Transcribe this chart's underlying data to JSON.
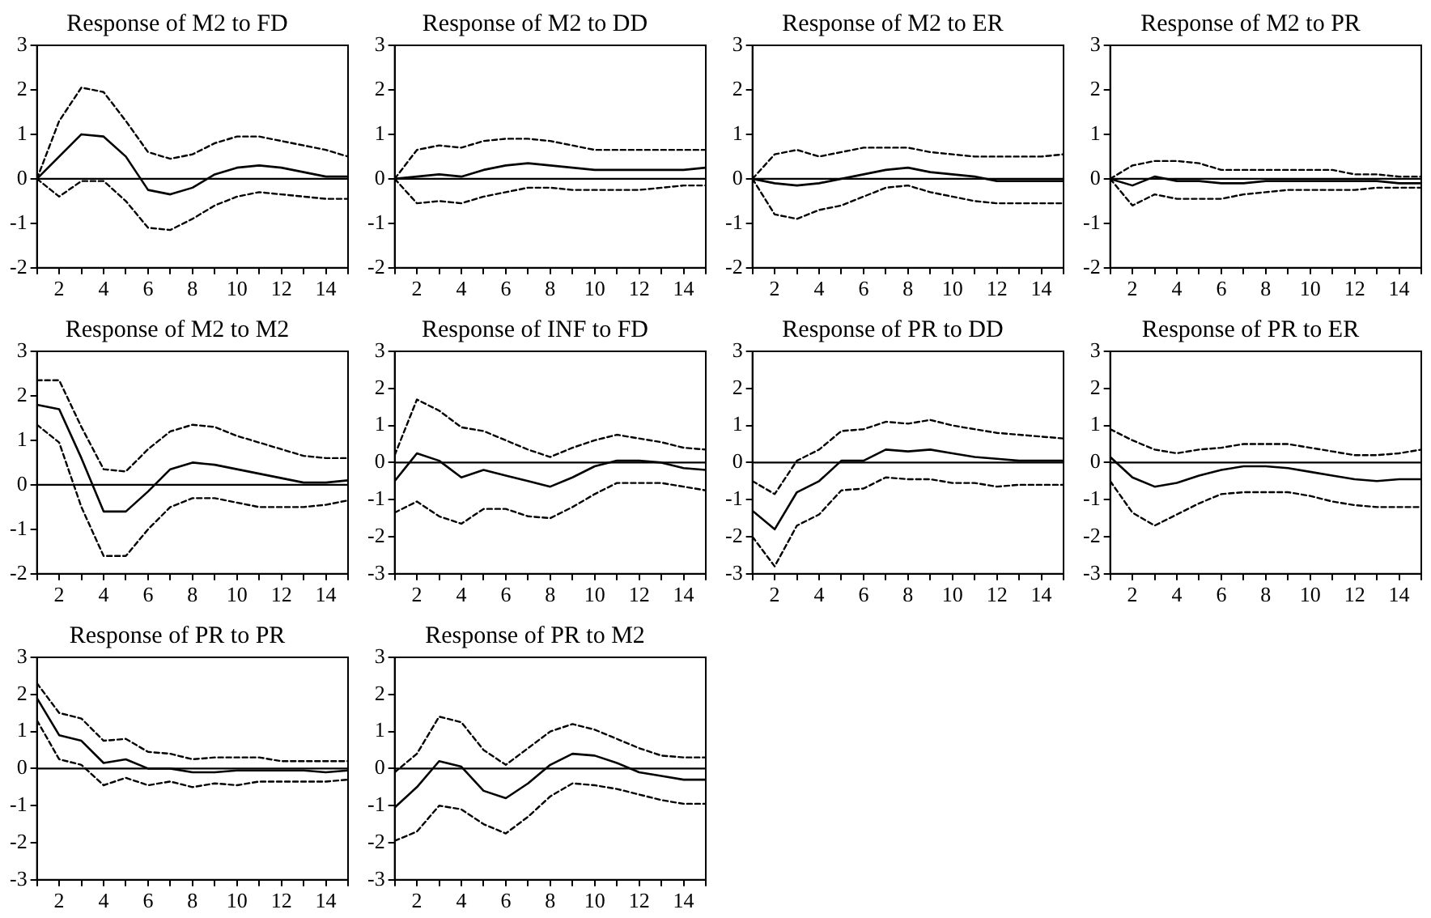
{
  "chart_data": [
    {
      "type": "line",
      "title": "Response of M2 to FD",
      "x": [
        1,
        2,
        3,
        4,
        5,
        6,
        7,
        8,
        9,
        10,
        11,
        12,
        13,
        14,
        15
      ],
      "xlim": [
        1,
        15
      ],
      "xticks": [
        {
          "value": 1,
          "label": null
        },
        2,
        {
          "value": 3,
          "label": null
        },
        4,
        {
          "value": 5,
          "label": null
        },
        6,
        {
          "value": 7,
          "label": null
        },
        8,
        {
          "value": 9,
          "label": null
        },
        10,
        {
          "value": 11,
          "label": null
        },
        12,
        {
          "value": 13,
          "label": null
        },
        14,
        {
          "value": 15,
          "label": null
        }
      ],
      "ylim": [
        -2,
        3
      ],
      "yticks": [
        -2,
        -1,
        0,
        1,
        2,
        3
      ],
      "grid": false,
      "ref_lines": [
        {
          "axis": "y",
          "value": 0,
          "color": "#000000"
        }
      ],
      "series": [
        {
          "color": "#000000",
          "line_style": "solid",
          "values": [
            0,
            0.5,
            1.0,
            0.95,
            0.5,
            -0.25,
            -0.35,
            -0.2,
            0.1,
            0.25,
            0.3,
            0.25,
            0.15,
            0.05,
            0.05
          ]
        },
        {
          "color": "#000000",
          "line_style": "dashed",
          "values": [
            0,
            1.3,
            2.05,
            1.95,
            1.3,
            0.6,
            0.45,
            0.55,
            0.8,
            0.95,
            0.95,
            0.85,
            0.75,
            0.65,
            0.5
          ]
        },
        {
          "color": "#000000",
          "line_style": "dashed",
          "values": [
            0,
            -0.4,
            -0.05,
            -0.05,
            -0.5,
            -1.1,
            -1.15,
            -0.9,
            -0.6,
            -0.4,
            -0.3,
            -0.35,
            -0.4,
            -0.45,
            -0.45
          ]
        }
      ]
    },
    {
      "type": "line",
      "title": "Response of M2 to DD",
      "x": [
        1,
        2,
        3,
        4,
        5,
        6,
        7,
        8,
        9,
        10,
        11,
        12,
        13,
        14,
        15
      ],
      "xlim": [
        1,
        15
      ],
      "xticks": [
        {
          "value": 1,
          "label": null
        },
        2,
        {
          "value": 3,
          "label": null
        },
        4,
        {
          "value": 5,
          "label": null
        },
        6,
        {
          "value": 7,
          "label": null
        },
        8,
        {
          "value": 9,
          "label": null
        },
        10,
        {
          "value": 11,
          "label": null
        },
        12,
        {
          "value": 13,
          "label": null
        },
        14,
        {
          "value": 15,
          "label": null
        }
      ],
      "ylim": [
        -2,
        3
      ],
      "yticks": [
        -2,
        -1,
        0,
        1,
        2,
        3
      ],
      "grid": false,
      "ref_lines": [
        {
          "axis": "y",
          "value": 0,
          "color": "#000000"
        }
      ],
      "series": [
        {
          "color": "#000000",
          "line_style": "solid",
          "values": [
            0,
            0.05,
            0.1,
            0.05,
            0.2,
            0.3,
            0.35,
            0.3,
            0.25,
            0.2,
            0.2,
            0.2,
            0.2,
            0.2,
            0.25
          ]
        },
        {
          "color": "#000000",
          "line_style": "dashed",
          "values": [
            0,
            0.65,
            0.75,
            0.7,
            0.85,
            0.9,
            0.9,
            0.85,
            0.75,
            0.65,
            0.65,
            0.65,
            0.65,
            0.65,
            0.65
          ]
        },
        {
          "color": "#000000",
          "line_style": "dashed",
          "values": [
            0,
            -0.55,
            -0.5,
            -0.55,
            -0.4,
            -0.3,
            -0.2,
            -0.2,
            -0.25,
            -0.25,
            -0.25,
            -0.25,
            -0.2,
            -0.15,
            -0.15
          ]
        }
      ]
    },
    {
      "type": "line",
      "title": "Response of M2 to ER",
      "x": [
        1,
        2,
        3,
        4,
        5,
        6,
        7,
        8,
        9,
        10,
        11,
        12,
        13,
        14,
        15
      ],
      "xlim": [
        1,
        15
      ],
      "xticks": [
        {
          "value": 1,
          "label": null
        },
        2,
        {
          "value": 3,
          "label": null
        },
        4,
        {
          "value": 5,
          "label": null
        },
        6,
        {
          "value": 7,
          "label": null
        },
        8,
        {
          "value": 9,
          "label": null
        },
        10,
        {
          "value": 11,
          "label": null
        },
        12,
        {
          "value": 13,
          "label": null
        },
        14,
        {
          "value": 15,
          "label": null
        }
      ],
      "ylim": [
        -2,
        3
      ],
      "yticks": [
        -2,
        -1,
        0,
        1,
        2,
        3
      ],
      "grid": false,
      "ref_lines": [
        {
          "axis": "y",
          "value": 0,
          "color": "#000000"
        }
      ],
      "series": [
        {
          "color": "#000000",
          "line_style": "solid",
          "values": [
            0,
            -0.1,
            -0.15,
            -0.1,
            0,
            0.1,
            0.2,
            0.25,
            0.15,
            0.1,
            0.05,
            -0.05,
            -0.05,
            -0.05,
            -0.05
          ]
        },
        {
          "color": "#000000",
          "line_style": "dashed",
          "values": [
            0,
            0.55,
            0.65,
            0.5,
            0.6,
            0.7,
            0.7,
            0.7,
            0.6,
            0.55,
            0.5,
            0.5,
            0.5,
            0.5,
            0.55
          ]
        },
        {
          "color": "#000000",
          "line_style": "dashed",
          "values": [
            0,
            -0.8,
            -0.9,
            -0.7,
            -0.6,
            -0.4,
            -0.2,
            -0.15,
            -0.3,
            -0.4,
            -0.5,
            -0.55,
            -0.55,
            -0.55,
            -0.55
          ]
        }
      ]
    },
    {
      "type": "line",
      "title": "Response of M2 to PR",
      "x": [
        1,
        2,
        3,
        4,
        5,
        6,
        7,
        8,
        9,
        10,
        11,
        12,
        13,
        14,
        15
      ],
      "xlim": [
        1,
        15
      ],
      "xticks": [
        {
          "value": 1,
          "label": null
        },
        2,
        {
          "value": 3,
          "label": null
        },
        4,
        {
          "value": 5,
          "label": null
        },
        6,
        {
          "value": 7,
          "label": null
        },
        8,
        {
          "value": 9,
          "label": null
        },
        10,
        {
          "value": 11,
          "label": null
        },
        12,
        {
          "value": 13,
          "label": null
        },
        14,
        {
          "value": 15,
          "label": null
        }
      ],
      "ylim": [
        -2,
        3
      ],
      "yticks": [
        -2,
        -1,
        0,
        1,
        2,
        3
      ],
      "grid": false,
      "ref_lines": [
        {
          "axis": "y",
          "value": 0,
          "color": "#000000"
        }
      ],
      "series": [
        {
          "color": "#000000",
          "line_style": "solid",
          "values": [
            0,
            -0.15,
            0.05,
            -0.05,
            -0.05,
            -0.1,
            -0.1,
            -0.05,
            -0.05,
            -0.05,
            -0.05,
            -0.05,
            -0.05,
            -0.1,
            -0.1
          ]
        },
        {
          "color": "#000000",
          "line_style": "dashed",
          "values": [
            0,
            0.3,
            0.4,
            0.4,
            0.35,
            0.2,
            0.2,
            0.2,
            0.2,
            0.2,
            0.2,
            0.1,
            0.1,
            0.05,
            0.05
          ]
        },
        {
          "color": "#000000",
          "line_style": "dashed",
          "values": [
            0,
            -0.6,
            -0.35,
            -0.45,
            -0.45,
            -0.45,
            -0.35,
            -0.3,
            -0.25,
            -0.25,
            -0.25,
            -0.25,
            -0.2,
            -0.2,
            -0.2
          ]
        }
      ]
    },
    {
      "type": "line",
      "title": "Response of M2 to M2",
      "x": [
        1,
        2,
        3,
        4,
        5,
        6,
        7,
        8,
        9,
        10,
        11,
        12,
        13,
        14,
        15
      ],
      "xlim": [
        1,
        15
      ],
      "xticks": [
        {
          "value": 1,
          "label": null
        },
        2,
        {
          "value": 3,
          "label": null
        },
        4,
        {
          "value": 5,
          "label": null
        },
        6,
        {
          "value": 7,
          "label": null
        },
        8,
        {
          "value": 9,
          "label": null
        },
        10,
        {
          "value": 11,
          "label": null
        },
        12,
        {
          "value": 13,
          "label": null
        },
        14,
        {
          "value": 15,
          "label": null
        }
      ],
      "ylim": [
        -2,
        3
      ],
      "yticks": [
        -2,
        -1,
        0,
        1,
        2,
        3
      ],
      "grid": false,
      "ref_lines": [
        {
          "axis": "y",
          "value": 0,
          "color": "#000000"
        }
      ],
      "series": [
        {
          "color": "#000000",
          "line_style": "solid",
          "values": [
            1.8,
            1.7,
            0.6,
            -0.6,
            -0.6,
            -0.15,
            0.35,
            0.5,
            0.45,
            0.35,
            0.25,
            0.15,
            0.05,
            0.05,
            0.1
          ]
        },
        {
          "color": "#000000",
          "line_style": "dashed",
          "values": [
            2.35,
            2.35,
            1.3,
            0.35,
            0.3,
            0.8,
            1.2,
            1.35,
            1.3,
            1.1,
            0.95,
            0.8,
            0.65,
            0.6,
            0.6
          ]
        },
        {
          "color": "#000000",
          "line_style": "dashed",
          "values": [
            1.35,
            0.95,
            -0.5,
            -1.6,
            -1.6,
            -1.0,
            -0.5,
            -0.3,
            -0.3,
            -0.4,
            -0.5,
            -0.5,
            -0.5,
            -0.45,
            -0.35
          ]
        }
      ]
    },
    {
      "type": "line",
      "title": "Response of INF to FD",
      "x": [
        1,
        2,
        3,
        4,
        5,
        6,
        7,
        8,
        9,
        10,
        11,
        12,
        13,
        14,
        15
      ],
      "xlim": [
        1,
        15
      ],
      "xticks": [
        {
          "value": 1,
          "label": null
        },
        2,
        {
          "value": 3,
          "label": null
        },
        4,
        {
          "value": 5,
          "label": null
        },
        6,
        {
          "value": 7,
          "label": null
        },
        8,
        {
          "value": 9,
          "label": null
        },
        10,
        {
          "value": 11,
          "label": null
        },
        12,
        {
          "value": 13,
          "label": null
        },
        14,
        {
          "value": 15,
          "label": null
        }
      ],
      "ylim": [
        -3,
        3
      ],
      "yticks": [
        -3,
        -2,
        -1,
        0,
        1,
        2,
        3
      ],
      "grid": false,
      "ref_lines": [
        {
          "axis": "y",
          "value": 0,
          "color": "#000000"
        }
      ],
      "series": [
        {
          "color": "#000000",
          "line_style": "solid",
          "values": [
            -0.5,
            0.25,
            0.05,
            -0.4,
            -0.2,
            -0.35,
            -0.5,
            -0.65,
            -0.4,
            -0.1,
            0.05,
            0.05,
            0,
            -0.15,
            -0.2
          ]
        },
        {
          "color": "#000000",
          "line_style": "dashed",
          "values": [
            0.2,
            1.7,
            1.4,
            0.95,
            0.85,
            0.6,
            0.35,
            0.15,
            0.4,
            0.6,
            0.75,
            0.65,
            0.55,
            0.4,
            0.35
          ]
        },
        {
          "color": "#000000",
          "line_style": "dashed",
          "values": [
            -1.35,
            -1.05,
            -1.45,
            -1.65,
            -1.25,
            -1.25,
            -1.45,
            -1.5,
            -1.2,
            -0.85,
            -0.55,
            -0.55,
            -0.55,
            -0.65,
            -0.75
          ]
        }
      ]
    },
    {
      "type": "line",
      "title": "Response of PR to DD",
      "x": [
        1,
        2,
        3,
        4,
        5,
        6,
        7,
        8,
        9,
        10,
        11,
        12,
        13,
        14,
        15
      ],
      "xlim": [
        1,
        15
      ],
      "xticks": [
        {
          "value": 1,
          "label": null
        },
        2,
        {
          "value": 3,
          "label": null
        },
        4,
        {
          "value": 5,
          "label": null
        },
        6,
        {
          "value": 7,
          "label": null
        },
        8,
        {
          "value": 9,
          "label": null
        },
        10,
        {
          "value": 11,
          "label": null
        },
        12,
        {
          "value": 13,
          "label": null
        },
        14,
        {
          "value": 15,
          "label": null
        }
      ],
      "ylim": [
        -3,
        3
      ],
      "yticks": [
        -3,
        -2,
        -1,
        0,
        1,
        2,
        3
      ],
      "grid": false,
      "ref_lines": [
        {
          "axis": "y",
          "value": 0,
          "color": "#000000"
        }
      ],
      "series": [
        {
          "color": "#000000",
          "line_style": "solid",
          "values": [
            -1.3,
            -1.8,
            -0.8,
            -0.5,
            0.05,
            0.05,
            0.35,
            0.3,
            0.35,
            0.25,
            0.15,
            0.1,
            0.05,
            0.05,
            0.05
          ]
        },
        {
          "color": "#000000",
          "line_style": "dashed",
          "values": [
            -0.5,
            -0.85,
            0.05,
            0.35,
            0.85,
            0.9,
            1.1,
            1.05,
            1.15,
            1.0,
            0.9,
            0.8,
            0.75,
            0.7,
            0.65
          ]
        },
        {
          "color": "#000000",
          "line_style": "dashed",
          "values": [
            -2.0,
            -2.8,
            -1.7,
            -1.4,
            -0.75,
            -0.7,
            -0.4,
            -0.45,
            -0.45,
            -0.55,
            -0.55,
            -0.65,
            -0.6,
            -0.6,
            -0.6
          ]
        }
      ]
    },
    {
      "type": "line",
      "title": "Response of PR to ER",
      "x": [
        1,
        2,
        3,
        4,
        5,
        6,
        7,
        8,
        9,
        10,
        11,
        12,
        13,
        14,
        15
      ],
      "xlim": [
        1,
        15
      ],
      "xticks": [
        {
          "value": 1,
          "label": null
        },
        2,
        {
          "value": 3,
          "label": null
        },
        4,
        {
          "value": 5,
          "label": null
        },
        6,
        {
          "value": 7,
          "label": null
        },
        8,
        {
          "value": 9,
          "label": null
        },
        10,
        {
          "value": 11,
          "label": null
        },
        12,
        {
          "value": 13,
          "label": null
        },
        14,
        {
          "value": 15,
          "label": null
        }
      ],
      "ylim": [
        -3,
        3
      ],
      "yticks": [
        -3,
        -2,
        -1,
        0,
        1,
        2,
        3
      ],
      "grid": false,
      "ref_lines": [
        {
          "axis": "y",
          "value": 0,
          "color": "#000000"
        }
      ],
      "series": [
        {
          "color": "#000000",
          "line_style": "solid",
          "values": [
            0.15,
            -0.4,
            -0.65,
            -0.55,
            -0.35,
            -0.2,
            -0.1,
            -0.1,
            -0.15,
            -0.25,
            -0.35,
            -0.45,
            -0.5,
            -0.45,
            -0.45
          ]
        },
        {
          "color": "#000000",
          "line_style": "dashed",
          "values": [
            0.9,
            0.6,
            0.35,
            0.25,
            0.35,
            0.4,
            0.5,
            0.5,
            0.5,
            0.4,
            0.3,
            0.2,
            0.2,
            0.25,
            0.35
          ]
        },
        {
          "color": "#000000",
          "line_style": "dashed",
          "values": [
            -0.5,
            -1.35,
            -1.7,
            -1.4,
            -1.1,
            -0.85,
            -0.8,
            -0.8,
            -0.8,
            -0.9,
            -1.05,
            -1.15,
            -1.2,
            -1.2,
            -1.2
          ]
        }
      ]
    },
    {
      "type": "line",
      "title": "Response of PR to PR",
      "x": [
        1,
        2,
        3,
        4,
        5,
        6,
        7,
        8,
        9,
        10,
        11,
        12,
        13,
        14,
        15
      ],
      "xlim": [
        1,
        15
      ],
      "xticks": [
        {
          "value": 1,
          "label": null
        },
        2,
        {
          "value": 3,
          "label": null
        },
        4,
        {
          "value": 5,
          "label": null
        },
        6,
        {
          "value": 7,
          "label": null
        },
        8,
        {
          "value": 9,
          "label": null
        },
        10,
        {
          "value": 11,
          "label": null
        },
        12,
        {
          "value": 13,
          "label": null
        },
        14,
        {
          "value": 15,
          "label": null
        }
      ],
      "ylim": [
        -3,
        3
      ],
      "yticks": [
        -3,
        -2,
        -1,
        0,
        1,
        2,
        3
      ],
      "grid": false,
      "ref_lines": [
        {
          "axis": "y",
          "value": 0,
          "color": "#000000"
        }
      ],
      "series": [
        {
          "color": "#000000",
          "line_style": "solid",
          "values": [
            1.9,
            0.9,
            0.75,
            0.15,
            0.25,
            0,
            0,
            -0.1,
            -0.1,
            -0.05,
            -0.05,
            -0.05,
            -0.05,
            -0.1,
            -0.05
          ]
        },
        {
          "color": "#000000",
          "line_style": "dashed",
          "values": [
            2.3,
            1.5,
            1.35,
            0.75,
            0.8,
            0.45,
            0.4,
            0.25,
            0.3,
            0.3,
            0.3,
            0.2,
            0.2,
            0.2,
            0.2
          ]
        },
        {
          "color": "#000000",
          "line_style": "dashed",
          "values": [
            1.3,
            0.25,
            0.1,
            -0.45,
            -0.25,
            -0.45,
            -0.35,
            -0.5,
            -0.4,
            -0.45,
            -0.35,
            -0.35,
            -0.35,
            -0.35,
            -0.3
          ]
        }
      ]
    },
    {
      "type": "line",
      "title": "Response of PR to M2",
      "x": [
        1,
        2,
        3,
        4,
        5,
        6,
        7,
        8,
        9,
        10,
        11,
        12,
        13,
        14,
        15
      ],
      "xlim": [
        1,
        15
      ],
      "xticks": [
        {
          "value": 1,
          "label": null
        },
        2,
        {
          "value": 3,
          "label": null
        },
        4,
        {
          "value": 5,
          "label": null
        },
        6,
        {
          "value": 7,
          "label": null
        },
        8,
        {
          "value": 9,
          "label": null
        },
        10,
        {
          "value": 11,
          "label": null
        },
        12,
        {
          "value": 13,
          "label": null
        },
        14,
        {
          "value": 15,
          "label": null
        }
      ],
      "ylim": [
        -3,
        3
      ],
      "yticks": [
        -3,
        -2,
        -1,
        0,
        1,
        2,
        3
      ],
      "grid": false,
      "ref_lines": [
        {
          "axis": "y",
          "value": 0,
          "color": "#000000"
        }
      ],
      "series": [
        {
          "color": "#000000",
          "line_style": "solid",
          "values": [
            -1.05,
            -0.5,
            0.2,
            0.05,
            -0.6,
            -0.8,
            -0.4,
            0.1,
            0.4,
            0.35,
            0.15,
            -0.1,
            -0.2,
            -0.3,
            -0.3
          ]
        },
        {
          "color": "#000000",
          "line_style": "dashed",
          "values": [
            -0.1,
            0.4,
            1.4,
            1.25,
            0.5,
            0.1,
            0.55,
            1.0,
            1.2,
            1.05,
            0.8,
            0.55,
            0.35,
            0.3,
            0.3
          ]
        },
        {
          "color": "#000000",
          "line_style": "dashed",
          "values": [
            -1.95,
            -1.7,
            -1.0,
            -1.1,
            -1.5,
            -1.75,
            -1.3,
            -0.75,
            -0.4,
            -0.45,
            -0.55,
            -0.7,
            -0.85,
            -0.95,
            -0.95
          ]
        }
      ]
    }
  ]
}
